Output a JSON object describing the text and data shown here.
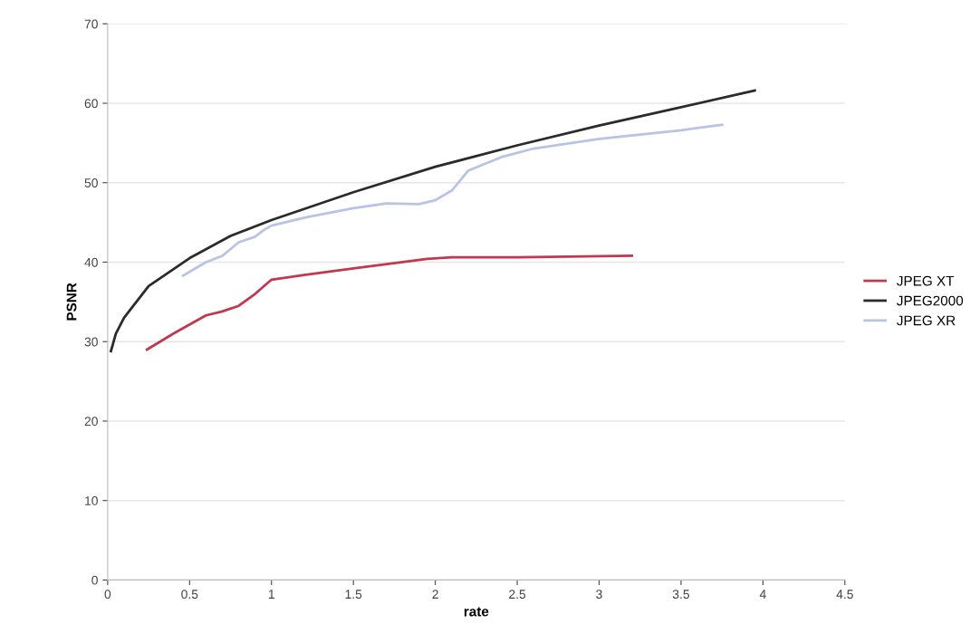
{
  "chart_data": {
    "type": "line",
    "xlabel": "rate",
    "ylabel": "PSNR",
    "xlim": [
      0,
      4.5
    ],
    "ylim": [
      0,
      70
    ],
    "xticks": [
      0,
      0.5,
      1,
      1.5,
      2,
      2.5,
      3,
      3.5,
      4,
      4.5
    ],
    "yticks": [
      0,
      10,
      20,
      30,
      40,
      50,
      60,
      70
    ],
    "grid": "y",
    "legend": "right",
    "marker": "none",
    "line_style": "solid",
    "series": [
      {
        "name": "JPEG XT",
        "color": "#c0394f",
        "x": [
          0.24,
          0.4,
          0.6,
          0.7,
          0.8,
          0.9,
          1.0,
          1.2,
          1.5,
          1.8,
          1.95,
          2.1,
          2.5,
          3.2
        ],
        "values": [
          29.0,
          31.0,
          33.3,
          33.8,
          34.5,
          36.0,
          37.8,
          38.4,
          39.2,
          40.0,
          40.4,
          40.6,
          40.6,
          40.8
        ]
      },
      {
        "name": "JPEG2000",
        "color": "#2b2b2b",
        "x": [
          0.02,
          0.05,
          0.1,
          0.25,
          0.5,
          0.75,
          1.0,
          1.5,
          2.0,
          2.5,
          3.0,
          3.5,
          3.95
        ],
        "values": [
          28.8,
          31.0,
          33.0,
          37.0,
          40.5,
          43.3,
          45.3,
          48.8,
          52.0,
          54.7,
          57.2,
          59.5,
          61.6
        ]
      },
      {
        "name": "JPEG XR",
        "color": "#b8c4e6",
        "x": [
          0.46,
          0.6,
          0.7,
          0.8,
          0.9,
          0.95,
          1.0,
          1.2,
          1.5,
          1.7,
          1.9,
          2.0,
          2.1,
          2.2,
          2.4,
          2.6,
          3.0,
          3.5,
          3.75
        ],
        "values": [
          38.3,
          40.0,
          40.8,
          42.5,
          43.2,
          44.0,
          44.6,
          45.6,
          46.8,
          47.4,
          47.3,
          47.8,
          49.0,
          51.5,
          53.2,
          54.3,
          55.5,
          56.6,
          57.3
        ]
      }
    ]
  }
}
